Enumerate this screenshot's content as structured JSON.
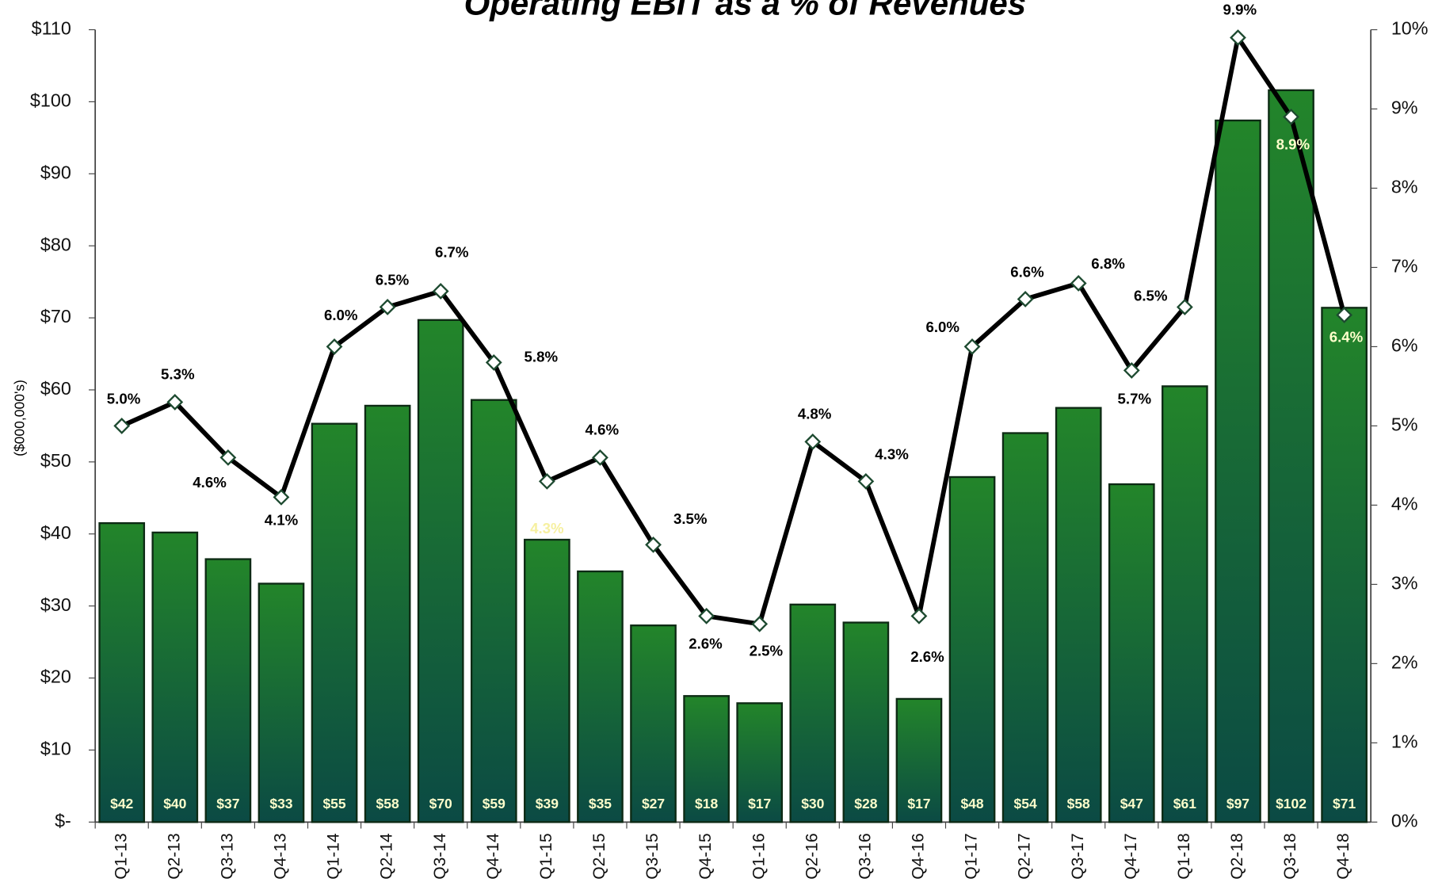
{
  "chart_data": {
    "type": "bar-line",
    "title": "Operating EBIT as a % of Revenues",
    "y_label": "($000,000's)",
    "categories": [
      "Q1-13",
      "Q2-13",
      "Q3-13",
      "Q4-13",
      "Q1-14",
      "Q2-14",
      "Q3-14",
      "Q4-14",
      "Q1-15",
      "Q2-15",
      "Q3-15",
      "Q4-15",
      "Q1-16",
      "Q2-16",
      "Q3-16",
      "Q4-16",
      "Q1-17",
      "Q2-17",
      "Q3-17",
      "Q4-17",
      "Q1-18",
      "Q2-18",
      "Q3-18",
      "Q4-18"
    ],
    "series": [
      {
        "name": "Operating EBIT",
        "type": "bar",
        "color": "#23852a",
        "values": [
          41.5,
          40.2,
          36.5,
          33.1,
          55.3,
          57.8,
          69.7,
          58.6,
          39.2,
          34.8,
          27.3,
          17.5,
          16.5,
          30.2,
          27.7,
          17.1,
          47.9,
          54.0,
          57.5,
          46.9,
          60.5,
          97.4,
          101.6,
          71.4
        ],
        "value_labels": [
          "$42",
          "$40",
          "$37",
          "$33",
          "$55",
          "$58",
          "$70",
          "$59",
          "$39",
          "$35",
          "$27",
          "$18",
          "$17",
          "$30",
          "$28",
          "$17",
          "$48",
          "$54",
          "$58",
          "$47",
          "$61",
          "$97",
          "$102",
          "$71"
        ]
      },
      {
        "name": "% of Revenues",
        "type": "line",
        "axis": "y2",
        "color": "#000000",
        "values": [
          5.0,
          5.3,
          4.6,
          4.1,
          6.0,
          6.5,
          6.7,
          5.8,
          4.3,
          4.6,
          3.5,
          2.6,
          2.5,
          4.8,
          4.3,
          2.6,
          6.0,
          6.6,
          6.8,
          5.7,
          6.5,
          9.9,
          8.9,
          6.4
        ],
        "value_labels": [
          "5.0%",
          "5.3%",
          "4.6%",
          "4.1%",
          "6.0%",
          "6.5%",
          "6.7%",
          "5.8%",
          "4.3%",
          "4.6%",
          "3.5%",
          "2.6%",
          "2.5%",
          "4.8%",
          "4.3%",
          "2.6%",
          "6.0%",
          "6.6%",
          "6.8%",
          "5.7%",
          "6.5%",
          "9.9%",
          "8.9%",
          "6.4%"
        ]
      }
    ],
    "ylim": [
      0,
      110
    ],
    "yticks": [
      {
        "value": 0,
        "label": "$-"
      },
      {
        "value": 10,
        "label": "$10"
      },
      {
        "value": 20,
        "label": "$20"
      },
      {
        "value": 30,
        "label": "$30"
      },
      {
        "value": 40,
        "label": "$40"
      },
      {
        "value": 50,
        "label": "$50"
      },
      {
        "value": 60,
        "label": "$60"
      },
      {
        "value": 70,
        "label": "$70"
      },
      {
        "value": 80,
        "label": "$80"
      },
      {
        "value": 90,
        "label": "$90"
      },
      {
        "value": 100,
        "label": "$100"
      },
      {
        "value": 110,
        "label": "$110"
      }
    ],
    "y2lim": [
      0,
      10
    ],
    "y2ticks": [
      {
        "value": 0,
        "label": "0%"
      },
      {
        "value": 1,
        "label": "1%"
      },
      {
        "value": 2,
        "label": "2%"
      },
      {
        "value": 3,
        "label": "3%"
      },
      {
        "value": 4,
        "label": "4%"
      },
      {
        "value": 5,
        "label": "5%"
      },
      {
        "value": 6,
        "label": "6%"
      },
      {
        "value": 7,
        "label": "7%"
      },
      {
        "value": 8,
        "label": "8%"
      },
      {
        "value": 9,
        "label": "9%"
      },
      {
        "value": 10,
        "label": "10%"
      }
    ]
  }
}
